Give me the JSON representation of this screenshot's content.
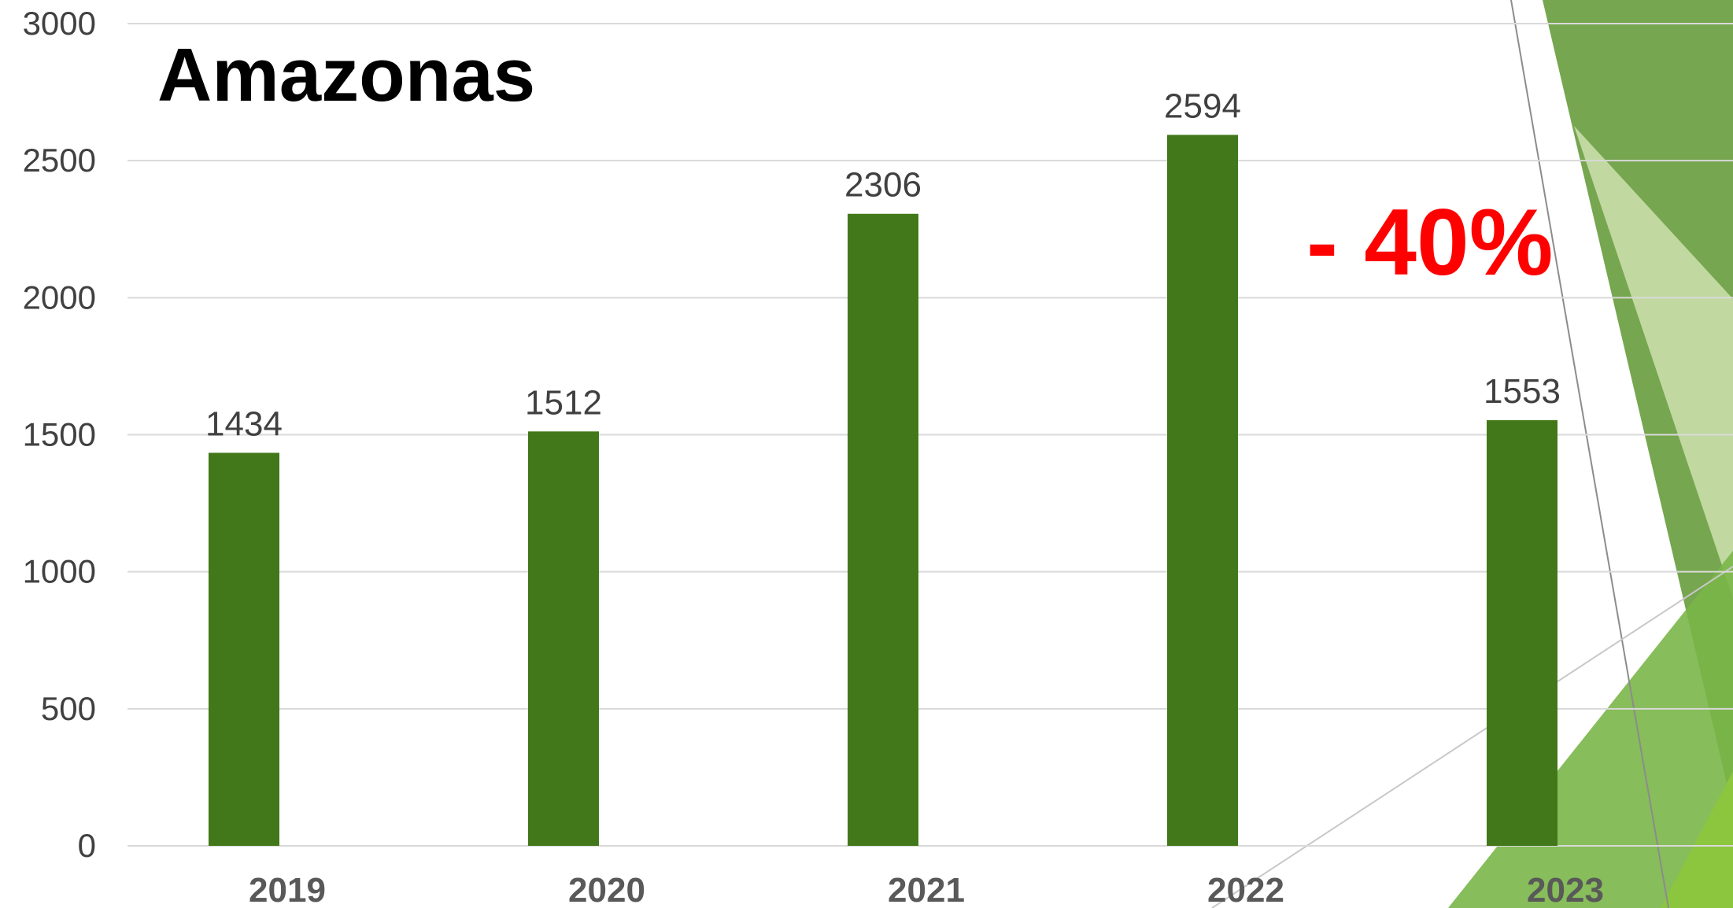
{
  "colors": {
    "bar": "#427819",
    "callout": "#ff0000",
    "grid": "#d9d9d9",
    "deco_dark": "#5e9730",
    "deco_mid": "#7ab648",
    "deco_light": "#d4e6b5",
    "deco_lime": "#8cc63f"
  },
  "chart_data": {
    "type": "bar",
    "title": "Amazonas",
    "categories": [
      "2019",
      "2020",
      "2021",
      "2022",
      "2023"
    ],
    "values": [
      1434,
      1512,
      2306,
      2594,
      1553
    ],
    "ylim": [
      0,
      3000
    ],
    "yticks": [
      0,
      500,
      1000,
      1500,
      2000,
      2500,
      3000
    ],
    "grid": true,
    "legend": "none",
    "data_labels": true,
    "annotation": "- 40%"
  }
}
